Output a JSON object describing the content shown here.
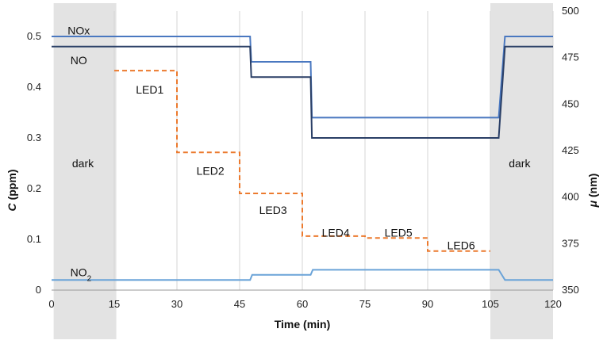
{
  "chart_data": {
    "type": "line",
    "xlabel": "Time (min)",
    "ylabel_left": "C (ppm)",
    "ylabel_left_symbol": "C",
    "ylabel_left_unit": " (ppm)",
    "ylabel_right": "μ (nm)",
    "ylabel_right_symbol": "μ",
    "ylabel_right_unit": " (nm)",
    "xlim": [
      0,
      120
    ],
    "ylim_left": [
      0,
      0.55
    ],
    "ylim_right": [
      350,
      500
    ],
    "x_ticks": [
      0,
      15,
      30,
      45,
      60,
      75,
      90,
      105,
      120
    ],
    "y_left_ticks": [
      0,
      0.1,
      0.2,
      0.3,
      0.4,
      0.5
    ],
    "y_left_tick_labels": [
      "0",
      "0.1",
      "0.2",
      "0.3",
      "0.4",
      "0.5"
    ],
    "y_right_ticks": [
      350,
      375,
      400,
      425,
      450,
      475,
      500
    ],
    "grid": {
      "vertical": true,
      "horizontal": false
    },
    "dark_regions": [
      {
        "x0": 0.5,
        "x1": 15.5,
        "label": "dark",
        "label_x": 7.5,
        "label_y": 0.25
      },
      {
        "x0": 105,
        "x1": 120,
        "label": "dark",
        "label_x": 112,
        "label_y": 0.25
      }
    ],
    "series": [
      {
        "name": "NOx",
        "axis": "left",
        "color": "#4a78c0",
        "style": "solid",
        "points": [
          [
            0,
            0.5
          ],
          [
            47.5,
            0.5
          ],
          [
            47.8,
            0.45
          ],
          [
            62,
            0.45
          ],
          [
            62.3,
            0.34
          ],
          [
            107,
            0.34
          ],
          [
            108.5,
            0.5
          ],
          [
            120,
            0.5
          ]
        ]
      },
      {
        "name": "NO",
        "axis": "left",
        "color": "#2a3f66",
        "style": "solid",
        "points": [
          [
            0,
            0.48
          ],
          [
            47.5,
            0.48
          ],
          [
            47.8,
            0.42
          ],
          [
            62,
            0.42
          ],
          [
            62.3,
            0.3
          ],
          [
            107,
            0.3
          ],
          [
            108.5,
            0.48
          ],
          [
            120,
            0.48
          ]
        ]
      },
      {
        "name": "NO2",
        "axis": "left",
        "color": "#6aa3d8",
        "style": "solid",
        "points": [
          [
            0,
            0.02
          ],
          [
            47.5,
            0.02
          ],
          [
            48,
            0.03
          ],
          [
            62,
            0.03
          ],
          [
            62.5,
            0.04
          ],
          [
            107,
            0.04
          ],
          [
            108.5,
            0.02
          ],
          [
            120,
            0.02
          ]
        ]
      },
      {
        "name": "LED",
        "axis": "right",
        "color": "#ec7a2e",
        "style": "dashed",
        "points": [
          [
            15,
            468
          ],
          [
            30,
            468
          ],
          [
            30,
            424
          ],
          [
            45,
            424
          ],
          [
            45,
            402
          ],
          [
            60,
            402
          ],
          [
            60,
            379
          ],
          [
            75,
            379
          ],
          [
            75,
            378
          ],
          [
            90,
            378
          ],
          [
            90,
            371
          ],
          [
            105,
            371
          ]
        ]
      }
    ],
    "series_labels": [
      {
        "text": "NOx",
        "x": 6.5,
        "y": 0.512
      },
      {
        "text": "NO",
        "x": 6.5,
        "y": 0.453
      },
      {
        "text": "NO",
        "sub": "2",
        "x": 7,
        "y": 0.035
      }
    ],
    "led_labels": [
      {
        "text": "LED1",
        "x": 23.5,
        "y": 0.395
      },
      {
        "text": "LED2",
        "x": 38,
        "y": 0.235
      },
      {
        "text": "LED3",
        "x": 53,
        "y": 0.158
      },
      {
        "text": "LED4",
        "x": 68,
        "y": 0.113
      },
      {
        "text": "LED5",
        "x": 83,
        "y": 0.113
      },
      {
        "text": "LED6",
        "x": 98,
        "y": 0.088
      }
    ]
  }
}
